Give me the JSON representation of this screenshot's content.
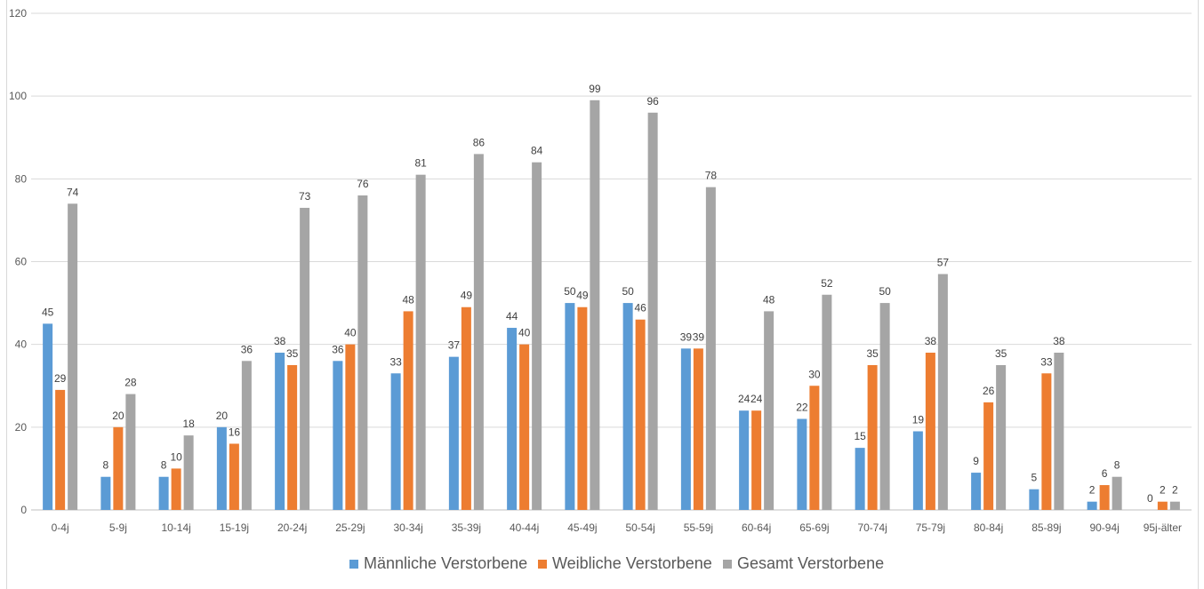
{
  "chart_data": {
    "type": "bar",
    "title": "",
    "xlabel": "",
    "ylabel": "",
    "ylim": [
      0,
      120
    ],
    "yticks": [
      0,
      20,
      40,
      60,
      80,
      100,
      120
    ],
    "grid": true,
    "legend_position": "bottom",
    "categories": [
      "0-4j",
      "5-9j",
      "10-14j",
      "15-19j",
      "20-24j",
      "25-29j",
      "30-34j",
      "35-39j",
      "40-44j",
      "45-49j",
      "50-54j",
      "55-59j",
      "60-64j",
      "65-69j",
      "70-74j",
      "75-79j",
      "80-84j",
      "85-89j",
      "90-94j",
      "95j-älter"
    ],
    "series": [
      {
        "name": "Männliche Verstorbene",
        "color": "#5B9BD5",
        "values": [
          45,
          8,
          8,
          20,
          38,
          36,
          33,
          37,
          44,
          50,
          50,
          39,
          24,
          22,
          15,
          19,
          9,
          5,
          2,
          0
        ]
      },
      {
        "name": "Weibliche Verstorbene",
        "color": "#ED7D31",
        "values": [
          29,
          20,
          10,
          16,
          35,
          40,
          48,
          49,
          40,
          49,
          46,
          39,
          24,
          30,
          35,
          38,
          26,
          33,
          6,
          2
        ]
      },
      {
        "name": "Gesamt Verstorbene",
        "color": "#A5A5A5",
        "values": [
          74,
          28,
          18,
          36,
          73,
          76,
          81,
          86,
          84,
          99,
          96,
          78,
          48,
          52,
          50,
          57,
          35,
          38,
          8,
          2
        ]
      }
    ]
  }
}
